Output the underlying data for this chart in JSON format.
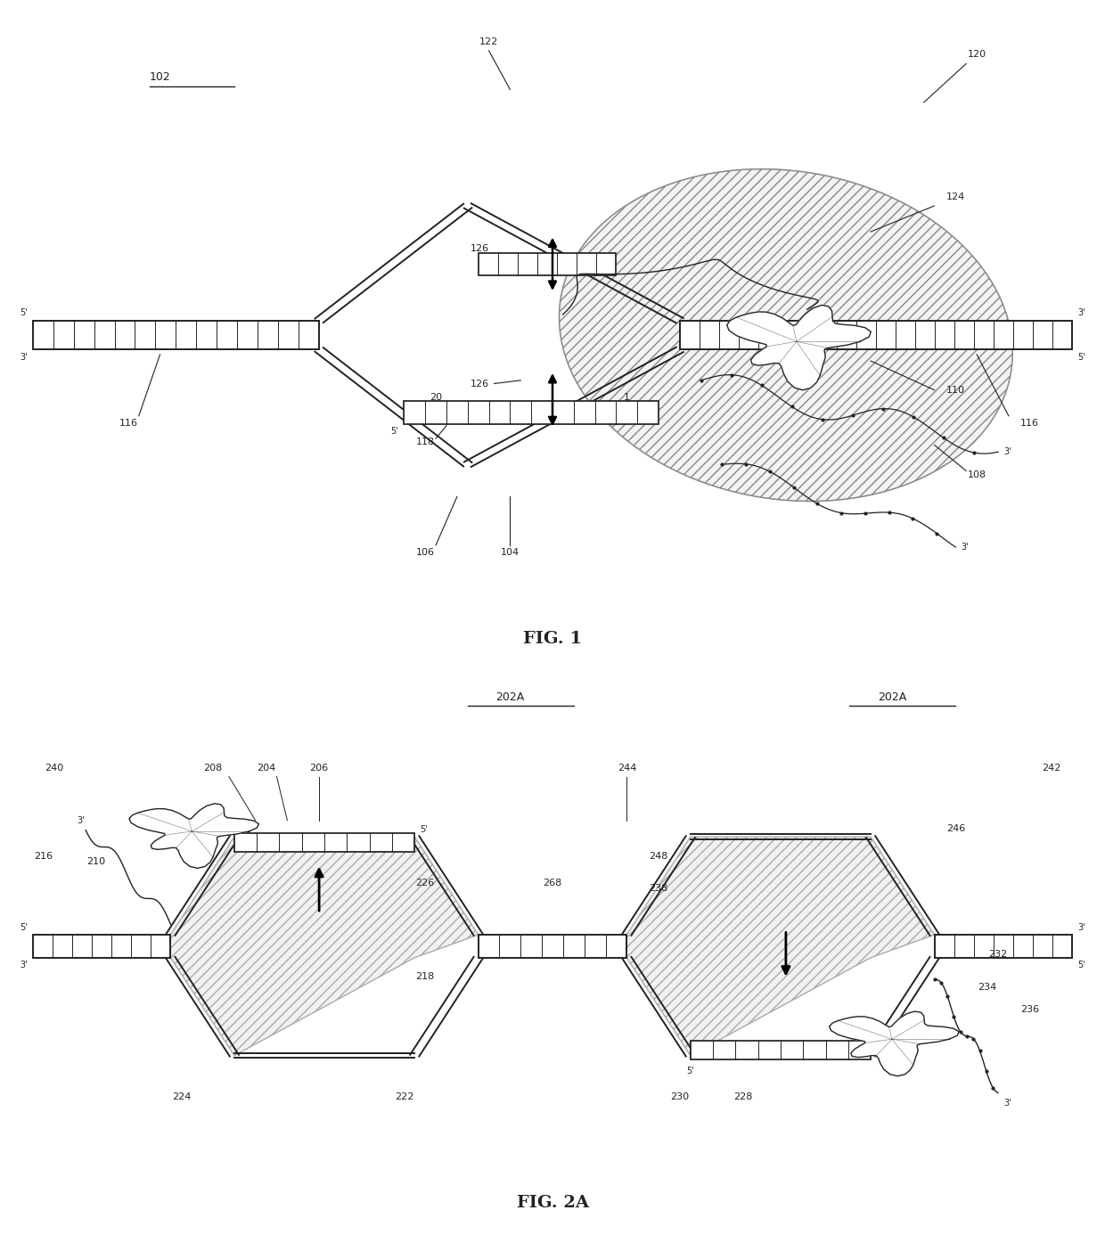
{
  "fig_width": 12.4,
  "fig_height": 13.95,
  "bg_color": "#ffffff",
  "label_fontsize": 8,
  "title_fontsize": 14,
  "fig1_title": "FIG. 1",
  "fig2_title": "FIG. 2A",
  "line_color": "#222222",
  "hatch_color": "#999999",
  "arrow_color": "#000000",
  "ref_102": "102",
  "ref_104": "104",
  "ref_106": "106",
  "ref_108": "108",
  "ref_110": "110",
  "ref_116_l": "116",
  "ref_116_r": "116",
  "ref_118": "118",
  "ref_120": "120",
  "ref_122": "122",
  "ref_124": "124",
  "ref_126_a": "126",
  "ref_126_b": "126",
  "ref_20": "20",
  "ref_1": "1",
  "ref_202A_c": "202A",
  "ref_202A_r": "202A",
  "ref_204": "204",
  "ref_206": "206",
  "ref_208": "208",
  "ref_210": "210",
  "ref_216": "216",
  "ref_218": "218",
  "ref_222": "222",
  "ref_224": "224",
  "ref_226": "226",
  "ref_228": "228",
  "ref_230": "230",
  "ref_232": "232",
  "ref_234": "234",
  "ref_236": "236",
  "ref_238": "238",
  "ref_240": "240",
  "ref_242": "242",
  "ref_244": "244",
  "ref_246": "246",
  "ref_248": "248",
  "ref_268": "268"
}
